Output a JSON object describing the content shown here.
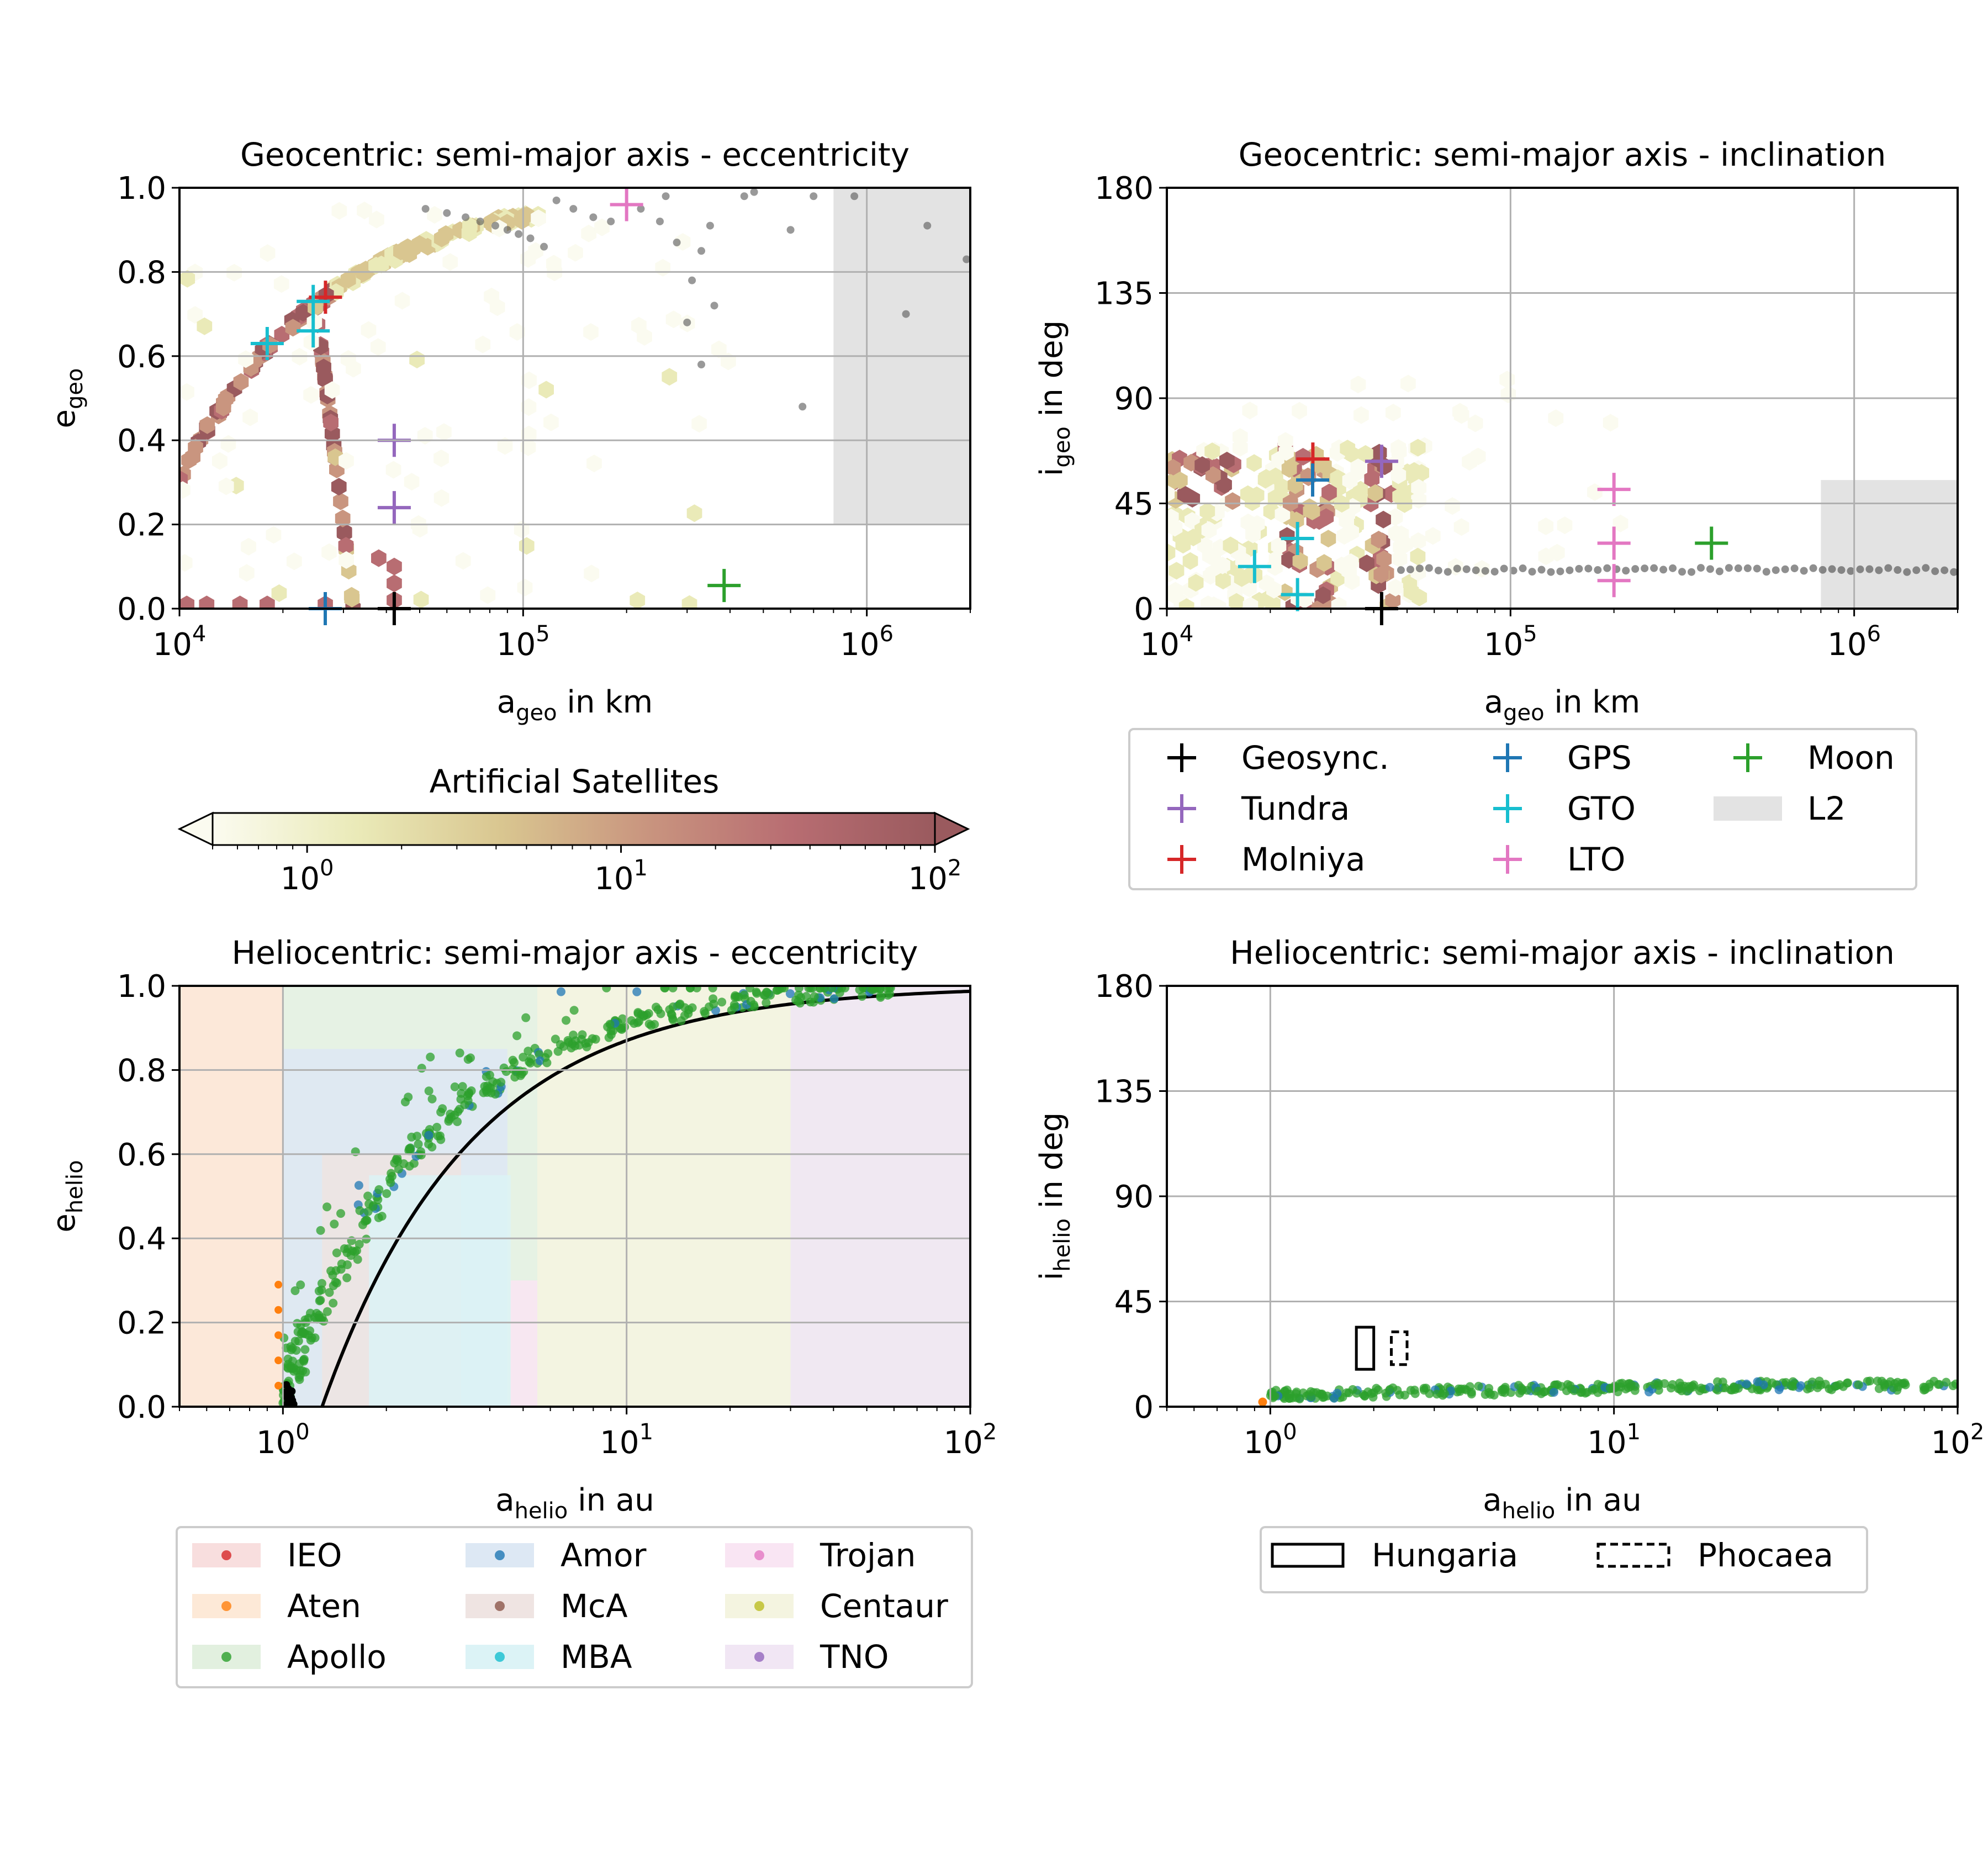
{
  "colors": {
    "geosync": "#000000",
    "tundra": "#9467bd",
    "molniya": "#d62728",
    "gps": "#1f77b4",
    "gto": "#17becf",
    "lto": "#e377c2",
    "moon": "#2ca02c",
    "l2": "#e3e3e3",
    "ieo": "#d62728",
    "aten": "#ff7f0e",
    "apollo": "#2ca02c",
    "amor": "#1f77b4",
    "mca": "#8c564b",
    "mba": "#17becf",
    "trojan": "#e377c2",
    "centaur": "#bcbd22",
    "tno": "#9467bd",
    "grid": "#b0b0b0"
  },
  "chart_data": [
    {
      "id": "geo_ecc",
      "type": "scatter",
      "title": "Geocentric: semi-major axis - eccentricity",
      "xlabel_main": "a",
      "xlabel_sub": "geo",
      "xlabel_tail": " in km",
      "ylabel_main": "e",
      "ylabel_sub": "geo",
      "ylabel_tail": "",
      "xscale": "log",
      "xlim": [
        10000,
        2000000
      ],
      "ylim": [
        0,
        1
      ],
      "xticks": [
        {
          "v": 10000,
          "base": "10",
          "exp": "4"
        },
        {
          "v": 100000,
          "base": "10",
          "exp": "5"
        },
        {
          "v": 1000000,
          "base": "10",
          "exp": "6"
        }
      ],
      "yticks": [
        "0.0",
        "0.2",
        "0.4",
        "0.6",
        "0.8",
        "1.0"
      ],
      "l2_region": {
        "x0": 800000,
        "x1": 2000000,
        "y0": 0.2,
        "y1": 1.0
      },
      "markers": [
        {
          "name": "Geosync.",
          "color_key": "geosync",
          "x": 42164,
          "y": 0.0
        },
        {
          "name": "Tundra",
          "color_key": "tundra",
          "x": 42164,
          "y": 0.4
        },
        {
          "name": "Tundra",
          "color_key": "tundra",
          "x": 42164,
          "y": 0.24
        },
        {
          "name": "Molniya",
          "color_key": "molniya",
          "x": 26600,
          "y": 0.74
        },
        {
          "name": "GPS",
          "color_key": "gps",
          "x": 26560,
          "y": 0.0
        },
        {
          "name": "GTO",
          "color_key": "gto",
          "x": 24500,
          "y": 0.73
        },
        {
          "name": "GTO",
          "color_key": "gto",
          "x": 24500,
          "y": 0.66
        },
        {
          "name": "GTO",
          "color_key": "gto",
          "x": 18000,
          "y": 0.63
        },
        {
          "name": "LTO",
          "color_key": "lto",
          "x": 200000,
          "y": 0.96
        },
        {
          "name": "Moon",
          "color_key": "moon",
          "x": 384400,
          "y": 0.055
        }
      ],
      "scatter_points": [
        [
          52000,
          0.95
        ],
        [
          60000,
          0.94
        ],
        [
          68000,
          0.93
        ],
        [
          75000,
          0.92
        ],
        [
          83000,
          0.91
        ],
        [
          90000,
          0.9
        ],
        [
          97000,
          0.89
        ],
        [
          105000,
          0.88
        ],
        [
          115000,
          0.86
        ],
        [
          125000,
          0.97
        ],
        [
          140000,
          0.95
        ],
        [
          160000,
          0.93
        ],
        [
          180000,
          0.92
        ],
        [
          220000,
          0.95
        ],
        [
          250000,
          0.92
        ],
        [
          280000,
          0.87
        ],
        [
          330000,
          0.85
        ],
        [
          350000,
          0.91
        ],
        [
          310000,
          0.78
        ],
        [
          360000,
          0.72
        ],
        [
          300000,
          0.68
        ],
        [
          330000,
          0.58
        ],
        [
          600000,
          0.9
        ],
        [
          650000,
          0.48
        ],
        [
          700000,
          0.98
        ],
        [
          920000,
          0.98
        ],
        [
          1300000,
          0.7
        ],
        [
          1500000,
          0.91
        ],
        [
          1950000,
          0.83
        ],
        [
          260000,
          0.98
        ],
        [
          440000,
          0.98
        ],
        [
          470000,
          0.99
        ]
      ]
    },
    {
      "id": "geo_inc",
      "type": "scatter",
      "title": "Geocentric: semi-major axis - inclination",
      "xlabel_main": "a",
      "xlabel_sub": "geo",
      "xlabel_tail": " in km",
      "ylabel_main": "i",
      "ylabel_sub": "geo",
      "ylabel_tail": " in deg",
      "xscale": "log",
      "xlim": [
        10000,
        2000000
      ],
      "ylim": [
        0,
        180
      ],
      "xticks": [
        {
          "v": 10000,
          "base": "10",
          "exp": "4"
        },
        {
          "v": 100000,
          "base": "10",
          "exp": "5"
        },
        {
          "v": 1000000,
          "base": "10",
          "exp": "6"
        }
      ],
      "yticks": [
        "0",
        "45",
        "90",
        "135",
        "180"
      ],
      "l2_region": {
        "x0": 800000,
        "x1": 2000000,
        "y0": 0,
        "y1": 55
      },
      "markers": [
        {
          "name": "Geosync.",
          "color_key": "geosync",
          "x": 42164,
          "y": 0
        },
        {
          "name": "Tundra",
          "color_key": "tundra",
          "x": 42164,
          "y": 63
        },
        {
          "name": "Molniya",
          "color_key": "molniya",
          "x": 26600,
          "y": 64
        },
        {
          "name": "GPS",
          "color_key": "gps",
          "x": 26560,
          "y": 55
        },
        {
          "name": "GTO",
          "color_key": "gto",
          "x": 24000,
          "y": 30
        },
        {
          "name": "GTO",
          "color_key": "gto",
          "x": 24000,
          "y": 6
        },
        {
          "name": "GTO",
          "color_key": "gto",
          "x": 18000,
          "y": 18
        },
        {
          "name": "LTO",
          "color_key": "lto",
          "x": 200000,
          "y": 51
        },
        {
          "name": "LTO",
          "color_key": "lto",
          "x": 200000,
          "y": 28
        },
        {
          "name": "LTO",
          "color_key": "lto",
          "x": 200000,
          "y": 12
        },
        {
          "name": "Moon",
          "color_key": "moon",
          "x": 384400,
          "y": 28
        }
      ],
      "scatter_range": {
        "x_from": 48000,
        "x_to": 1950000,
        "y": 16.5
      }
    },
    {
      "id": "helio_ecc",
      "type": "scatter",
      "title": "Heliocentric: semi-major axis - eccentricity",
      "xlabel_main": "a",
      "xlabel_sub": "helio",
      "xlabel_tail": " in au",
      "ylabel_main": "e",
      "ylabel_sub": "helio",
      "ylabel_tail": "",
      "xscale": "log",
      "xlim": [
        0.5,
        100
      ],
      "ylim": [
        0,
        1
      ],
      "xticks": [
        {
          "v": 1,
          "base": "10",
          "exp": "0"
        },
        {
          "v": 10,
          "base": "10",
          "exp": "1"
        },
        {
          "v": 100,
          "base": "10",
          "exp": "2"
        }
      ],
      "yticks": [
        "0.0",
        "0.2",
        "0.4",
        "0.6",
        "0.8",
        "1.0"
      ],
      "regions": [
        {
          "key": "ieo",
          "x0": 0.5,
          "x1": 1.0,
          "y0": 0,
          "y1": 1
        },
        {
          "key": "aten",
          "x0": 0.5,
          "x1": 1.0,
          "y0": 0,
          "y1": 1
        },
        {
          "key": "apollo",
          "x0": 1.0,
          "x1": 100,
          "y0": 0,
          "y1": 1
        },
        {
          "key": "amor",
          "x0": 1.0,
          "x1": 4.5,
          "y0": 0,
          "y1": 0.85
        },
        {
          "key": "mca",
          "x0": 1.3,
          "x1": 3.3,
          "y0": 0,
          "y1": 0.6
        },
        {
          "key": "mba",
          "x0": 1.78,
          "x1": 4.6,
          "y0": 0,
          "y1": 0.55
        },
        {
          "key": "trojan",
          "x0": 4.6,
          "x1": 5.5,
          "y0": 0,
          "y1": 0.3
        },
        {
          "key": "centaur",
          "x0": 5.5,
          "x1": 30,
          "y0": 0,
          "y1": 1
        },
        {
          "key": "tno",
          "x0": 30,
          "x1": 100,
          "y0": 0,
          "y1": 1
        }
      ],
      "boundary_curve": "e = 1 - 1.3/a",
      "apollo_curve": "e = 1 - 0.99/a"
    },
    {
      "id": "helio_inc",
      "type": "scatter",
      "title": "Heliocentric: semi-major axis - inclination",
      "xlabel_main": "a",
      "xlabel_sub": "helio",
      "xlabel_tail": " in au",
      "ylabel_main": "i",
      "ylabel_sub": "helio",
      "ylabel_tail": " in deg",
      "xscale": "log",
      "xlim": [
        0.5,
        100
      ],
      "ylim": [
        0,
        180
      ],
      "xticks": [
        {
          "v": 1,
          "base": "10",
          "exp": "0"
        },
        {
          "v": 10,
          "base": "10",
          "exp": "1"
        },
        {
          "v": 100,
          "base": "10",
          "exp": "2"
        }
      ],
      "yticks": [
        "0",
        "45",
        "90",
        "135",
        "180"
      ],
      "boxes": [
        {
          "name": "Hungaria",
          "style": "solid",
          "x0": 1.78,
          "x1": 2.0,
          "y0": 16,
          "y1": 34
        },
        {
          "name": "Phocaea",
          "style": "dashed",
          "x0": 2.25,
          "x1": 2.5,
          "y0": 18,
          "y1": 32
        }
      ]
    }
  ],
  "colorbar": {
    "title": "Artificial Satellites",
    "range": [
      0.5,
      100
    ],
    "ticks": [
      {
        "v": 1,
        "base": "10",
        "exp": "0"
      },
      {
        "v": 10,
        "base": "10",
        "exp": "1"
      },
      {
        "v": 100,
        "base": "10",
        "exp": "2"
      }
    ],
    "stops": [
      "#fbfbf0",
      "#eaeab8",
      "#d9c690",
      "#c9957f",
      "#b86d72",
      "#9a5a5e"
    ]
  },
  "legends": {
    "geo": [
      {
        "label": "Geosync.",
        "kind": "plus",
        "color_key": "geosync"
      },
      {
        "label": "Tundra",
        "kind": "plus",
        "color_key": "tundra"
      },
      {
        "label": "Molniya",
        "kind": "plus",
        "color_key": "molniya"
      },
      {
        "label": "GPS",
        "kind": "plus",
        "color_key": "gps"
      },
      {
        "label": "GTO",
        "kind": "plus",
        "color_key": "gto"
      },
      {
        "label": "LTO",
        "kind": "plus",
        "color_key": "lto"
      },
      {
        "label": "Moon",
        "kind": "plus",
        "color_key": "moon"
      },
      {
        "label": "L2",
        "kind": "patch",
        "color_key": "l2"
      }
    ],
    "helio_groups": [
      {
        "label": "IEO",
        "color_key": "ieo"
      },
      {
        "label": "Aten",
        "color_key": "aten"
      },
      {
        "label": "Apollo",
        "color_key": "apollo"
      },
      {
        "label": "Amor",
        "color_key": "amor"
      },
      {
        "label": "McA",
        "color_key": "mca"
      },
      {
        "label": "MBA",
        "color_key": "mba"
      },
      {
        "label": "Trojan",
        "color_key": "trojan"
      },
      {
        "label": "Centaur",
        "color_key": "centaur"
      },
      {
        "label": "TNO",
        "color_key": "tno"
      }
    ],
    "helio_boxes": [
      {
        "label": "Hungaria",
        "style": "solid"
      },
      {
        "label": "Phocaea",
        "style": "dashed"
      }
    ]
  }
}
